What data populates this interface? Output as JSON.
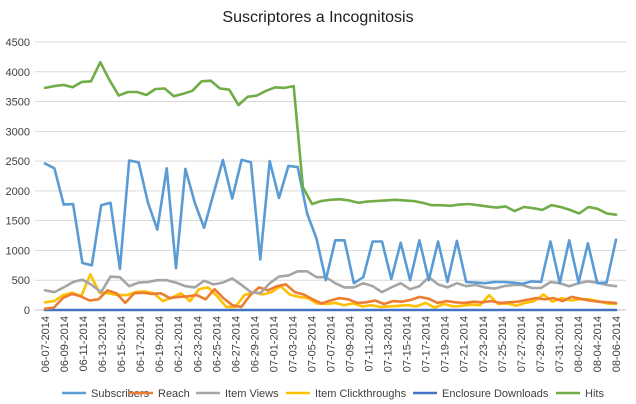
{
  "chart_data": {
    "type": "line",
    "title": "Suscriptores a Incognitosis",
    "xlabel": "",
    "ylabel": "",
    "ylim": [
      0,
      4500
    ],
    "yticks": [
      0,
      500,
      1000,
      1500,
      2000,
      2500,
      3000,
      3500,
      4000,
      4500
    ],
    "grid": true,
    "legend_position": "bottom",
    "x_tick_labels": [
      "06-07-2014",
      "06-09-2014",
      "06-11-2014",
      "06-13-2014",
      "06-15-2014",
      "06-17-2014",
      "06-19-2014",
      "06-21-2014",
      "06-23-2014",
      "06-25-2014",
      "06-27-2014",
      "06-29-2014",
      "07-01-2014",
      "07-03-2014",
      "07-05-2014",
      "07-07-2014",
      "07-09-2014",
      "07-11-2014",
      "07-13-2014",
      "07-15-2014",
      "07-17-2014",
      "07-19-2014",
      "07-21-2014",
      "07-23-2014",
      "07-25-2014",
      "07-27-2014",
      "07-29-2014",
      "07-31-2014",
      "08-02-2014",
      "08-04-2014",
      "08-06-2014"
    ],
    "series": [
      {
        "name": "Subscribers",
        "color": "#5B9BD5",
        "values": [
          2460,
          2380,
          1770,
          1780,
          790,
          750,
          1760,
          1800,
          690,
          2510,
          2480,
          1800,
          1350,
          2380,
          700,
          2370,
          1800,
          1380,
          1950,
          2520,
          1870,
          2520,
          2480,
          850,
          2500,
          1880,
          2420,
          2400,
          1620,
          1200,
          500,
          1170,
          1170,
          450,
          550,
          1150,
          1150,
          520,
          1130,
          500,
          1170,
          500,
          1150,
          470,
          1160,
          470,
          460,
          450,
          470,
          470,
          460,
          440,
          480,
          470,
          1150,
          450,
          1170,
          460,
          1120,
          450,
          460,
          1180
        ]
      },
      {
        "name": "Reach",
        "color": "#ED7D31",
        "values": [
          20,
          40,
          200,
          270,
          230,
          160,
          180,
          330,
          280,
          120,
          280,
          290,
          270,
          280,
          200,
          220,
          230,
          250,
          180,
          350,
          200,
          80,
          50,
          250,
          380,
          330,
          400,
          430,
          300,
          260,
          180,
          110,
          160,
          200,
          180,
          120,
          130,
          160,
          100,
          150,
          140,
          170,
          220,
          190,
          120,
          150,
          130,
          120,
          140,
          130,
          150,
          120,
          130,
          140,
          170,
          200,
          180,
          200,
          150,
          220,
          190,
          160,
          140,
          130,
          120
        ]
      },
      {
        "name": "Item Views",
        "color": "#A5A5A5",
        "values": [
          330,
          300,
          380,
          470,
          510,
          420,
          300,
          560,
          550,
          400,
          460,
          470,
          500,
          500,
          460,
          400,
          380,
          490,
          430,
          460,
          530,
          420,
          300,
          280,
          450,
          560,
          580,
          650,
          650,
          550,
          550,
          450,
          380,
          380,
          450,
          400,
          300,
          380,
          450,
          350,
          400,
          550,
          430,
          380,
          450,
          400,
          420,
          380,
          360,
          400,
          420,
          420,
          370,
          370,
          470,
          450,
          400,
          450,
          480,
          460,
          420,
          400
        ]
      },
      {
        "name": "Item Clickthroughs",
        "color": "#FFC000",
        "values": [
          130,
          150,
          250,
          290,
          230,
          600,
          290,
          280,
          250,
          250,
          300,
          310,
          280,
          150,
          210,
          280,
          150,
          350,
          380,
          230,
          50,
          50,
          250,
          300,
          260,
          300,
          400,
          260,
          220,
          200,
          110,
          100,
          120,
          80,
          110,
          60,
          80,
          50,
          60,
          70,
          80,
          60,
          120,
          40,
          100,
          60,
          70,
          90,
          80,
          250,
          100,
          110,
          70,
          120,
          150,
          260,
          140,
          200,
          160,
          180,
          180,
          150,
          110,
          100
        ]
      },
      {
        "name": "Enclosure Downloads",
        "color": "#4472C4",
        "values": [
          0,
          0,
          0,
          0,
          0,
          0,
          0,
          0,
          0,
          0,
          0,
          0,
          0,
          0,
          0,
          0,
          0,
          0,
          0,
          0,
          0,
          0,
          0,
          0,
          0,
          0,
          0,
          0,
          0,
          0,
          0,
          0,
          0,
          0,
          0,
          0,
          0,
          0,
          0,
          0,
          0,
          0,
          0,
          0,
          0,
          0,
          0,
          0,
          0,
          0,
          0,
          0,
          0,
          0,
          0,
          0,
          0,
          0,
          0,
          0,
          0,
          0,
          0,
          0
        ]
      },
      {
        "name": "Hits",
        "color": "#70AD47",
        "values": [
          3730,
          3760,
          3780,
          3740,
          3830,
          3840,
          4160,
          3860,
          3600,
          3660,
          3660,
          3610,
          3710,
          3720,
          3590,
          3630,
          3680,
          3840,
          3850,
          3720,
          3700,
          3440,
          3580,
          3600,
          3680,
          3740,
          3730,
          3760,
          2060,
          1780,
          1830,
          1850,
          1860,
          1840,
          1800,
          1820,
          1830,
          1840,
          1850,
          1840,
          1830,
          1800,
          1760,
          1760,
          1750,
          1770,
          1780,
          1760,
          1740,
          1720,
          1740,
          1660,
          1730,
          1710,
          1680,
          1760,
          1730,
          1680,
          1620,
          1730,
          1700,
          1620,
          1600
        ]
      }
    ]
  }
}
